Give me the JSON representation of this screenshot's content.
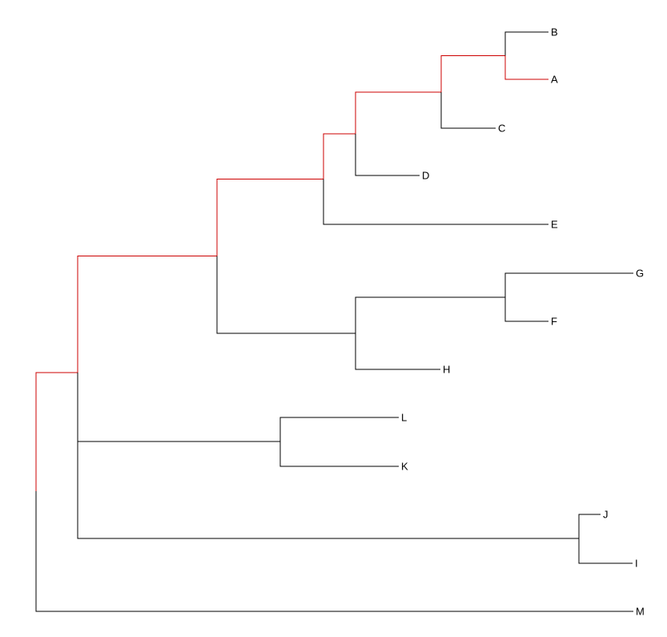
{
  "diagram": {
    "type": "phylogenetic-tree",
    "layout": "rectangular",
    "root": "n0",
    "tips": [
      {
        "id": "B",
        "label": "B"
      },
      {
        "id": "A",
        "label": "A"
      },
      {
        "id": "C",
        "label": "C"
      },
      {
        "id": "D",
        "label": "D"
      },
      {
        "id": "E",
        "label": "E"
      },
      {
        "id": "G",
        "label": "G"
      },
      {
        "id": "F",
        "label": "F"
      },
      {
        "id": "H",
        "label": "H"
      },
      {
        "id": "L",
        "label": "L"
      },
      {
        "id": "K",
        "label": "K"
      },
      {
        "id": "J",
        "label": "J"
      },
      {
        "id": "I",
        "label": "I"
      },
      {
        "id": "M",
        "label": "M"
      }
    ],
    "edges": [
      {
        "from": "n0",
        "to": "n1"
      },
      {
        "from": "n0",
        "to": "M"
      },
      {
        "from": "n1",
        "to": "n2"
      },
      {
        "from": "n1",
        "to": "n9"
      },
      {
        "from": "n2",
        "to": "n3"
      },
      {
        "from": "n2",
        "to": "n7"
      },
      {
        "from": "n3",
        "to": "n4"
      },
      {
        "from": "n3",
        "to": "E"
      },
      {
        "from": "n4",
        "to": "n5"
      },
      {
        "from": "n4",
        "to": "D"
      },
      {
        "from": "n5",
        "to": "n6"
      },
      {
        "from": "n5",
        "to": "C"
      },
      {
        "from": "n6",
        "to": "B"
      },
      {
        "from": "n6",
        "to": "A"
      },
      {
        "from": "n7",
        "to": "n8"
      },
      {
        "from": "n7",
        "to": "H"
      },
      {
        "from": "n8",
        "to": "G"
      },
      {
        "from": "n8",
        "to": "F"
      },
      {
        "from": "n9",
        "to": "n10"
      },
      {
        "from": "n9",
        "to": "n11"
      },
      {
        "from": "n10",
        "to": "L"
      },
      {
        "from": "n10",
        "to": "K"
      },
      {
        "from": "n11",
        "to": "J"
      },
      {
        "from": "n11",
        "to": "I"
      }
    ],
    "highlighted_path": [
      "n0",
      "n1",
      "n2",
      "n3",
      "n4",
      "n5",
      "n6",
      "A"
    ],
    "colors": {
      "branch": "#000000",
      "highlight": "#cc0000",
      "label": "#000000"
    }
  }
}
